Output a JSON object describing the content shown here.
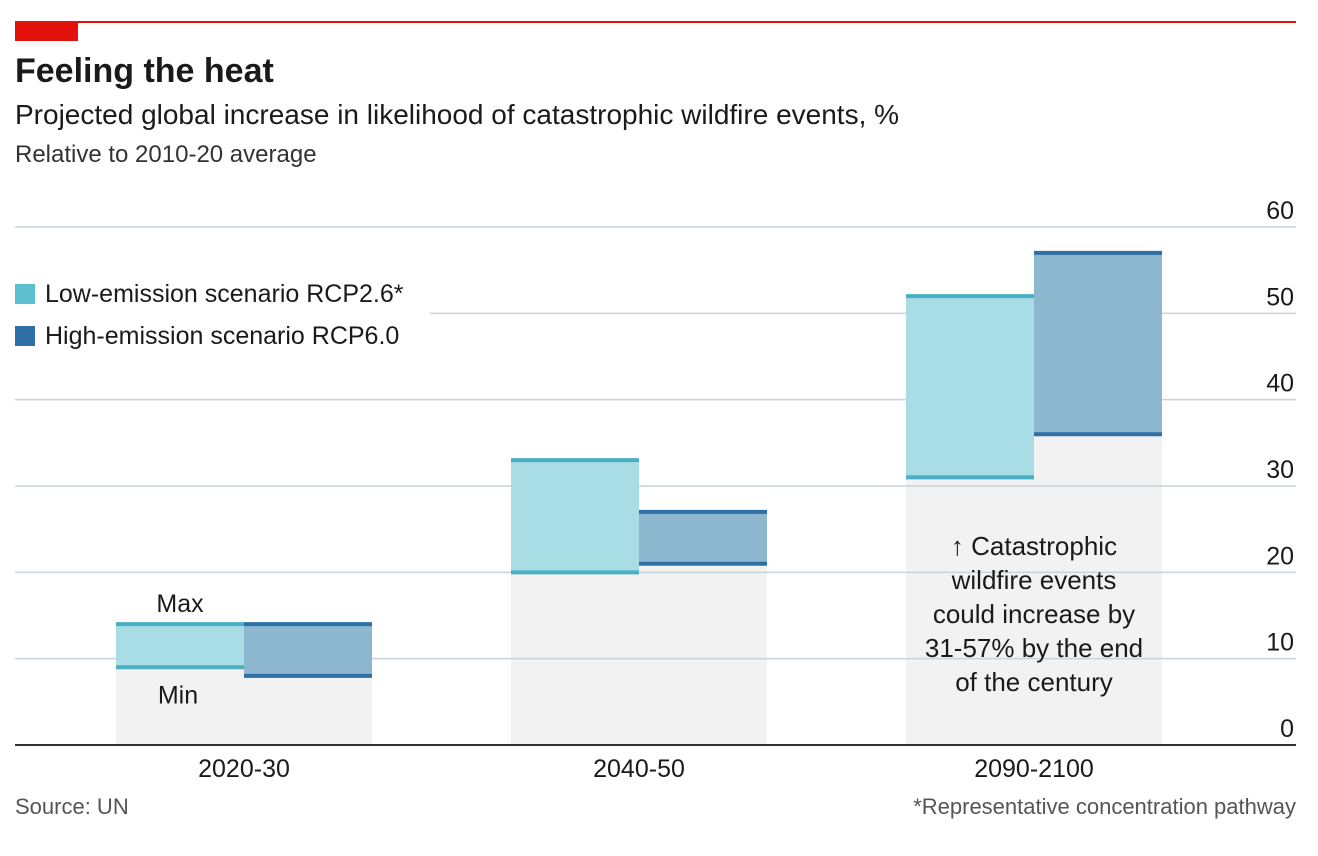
{
  "header": {
    "title": "Feeling the heat",
    "subtitle": "Projected global increase in likelihood of catastrophic wildfire events, %",
    "subtitle2": "Relative to 2010-20 average"
  },
  "legend": {
    "items": [
      {
        "label": "Low-emission scenario RCP2.6*",
        "color": "#5bbfd0"
      },
      {
        "label": "High-emission scenario RCP6.0",
        "color": "#2e6fa5"
      }
    ]
  },
  "annotations": {
    "max_label": "Max",
    "min_label": "Min",
    "callout": [
      "↑ Catastrophic",
      "wildfire events",
      "could increase by",
      "31-57% by the end",
      "of the century"
    ]
  },
  "footer": {
    "source": "Source: UN",
    "footnote": "*Representative concentration pathway"
  },
  "colors": {
    "low_fill": "#a8dde6",
    "low_line": "#4aaec4",
    "high_fill": "#8db6cf",
    "high_line": "#2e6fa5",
    "background_band": "#f2f2f2",
    "grid": "#c9d3da",
    "axis": "#333333"
  },
  "chart_data": {
    "type": "bar",
    "categories": [
      "2020-30",
      "2040-50",
      "2090-2100"
    ],
    "series": [
      {
        "name": "Low-emission scenario RCP2.6*",
        "min": [
          9,
          20,
          31
        ],
        "max": [
          14,
          33,
          52
        ]
      },
      {
        "name": "High-emission scenario RCP6.0",
        "min": [
          8,
          21,
          36
        ],
        "max": [
          14,
          27,
          57
        ]
      }
    ],
    "ylim": [
      0,
      60
    ],
    "yticks": [
      0,
      10,
      20,
      30,
      40,
      50,
      60
    ],
    "y_axis_side": "right",
    "grid": true,
    "legend_position": "top-left"
  }
}
